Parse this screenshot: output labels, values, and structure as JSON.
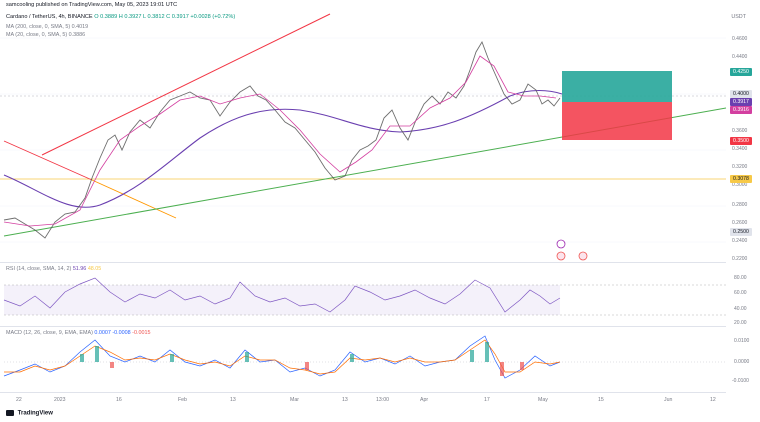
{
  "header": {
    "published": "samcooling published on TradingView.com, May 05, 2023 19:01 UTC"
  },
  "symbol": {
    "name": "Cardano / TetherUS, 4h, BINANCE",
    "ohlc": "O 0.3889 H 0.3927 L 0.3812 C 0.3917 +0.0028 (+0.72%)"
  },
  "indicators": {
    "ma200": "MA (200, close, 0, SMA, 5) 0.4019",
    "ma20": "MA (20, close, 0, SMA, 5) 0.3886",
    "rsi": "RSI (14, close, SMA, 14, 2)",
    "rsi_val1": "51.96",
    "rsi_val2": "48.05",
    "macd": "MACD (12, 26, close, 9, EMA, EMA)",
    "macd_val1": "0.0007",
    "macd_val2": "-0.0008",
    "macd_val3": "-0.0015"
  },
  "currency": "USDT",
  "price_axis": [
    "0.4600",
    "0.4400",
    "0.4200",
    "0.4000",
    "0.3800",
    "0.3600",
    "0.3400",
    "0.3200",
    "0.3000",
    "0.2800",
    "0.2600",
    "0.2400",
    "0.2200"
  ],
  "price_tags": {
    "p4250": "0.4250",
    "p4000": "0.4000",
    "p3917": "0.3917",
    "p3916": "0.3916",
    "p3500": "0.3500",
    "p3078": "0.3078",
    "p2500": "0.2500"
  },
  "rsi_axis": [
    "80.00",
    "60.00",
    "40.00",
    "20.00"
  ],
  "macd_axis": [
    "0.0100",
    "0.0000",
    "-0.0100"
  ],
  "time_axis": [
    "22",
    "2023",
    "16",
    "Feb",
    "13",
    "Mar",
    "13",
    "13:00",
    "Apr",
    "17",
    "May",
    "15",
    "Jun",
    "12"
  ],
  "colors": {
    "up": "#26a69a",
    "down": "#ef5350",
    "ma200": "#6a3fb0",
    "ma20": "#d33fa0",
    "red_line": "#f23645",
    "green_line": "#4caf50",
    "orange_line": "#ff9800",
    "yellow_line": "#f7c948",
    "target": "#26a69a",
    "stop": "#f23645"
  },
  "logo": "TradingView"
}
